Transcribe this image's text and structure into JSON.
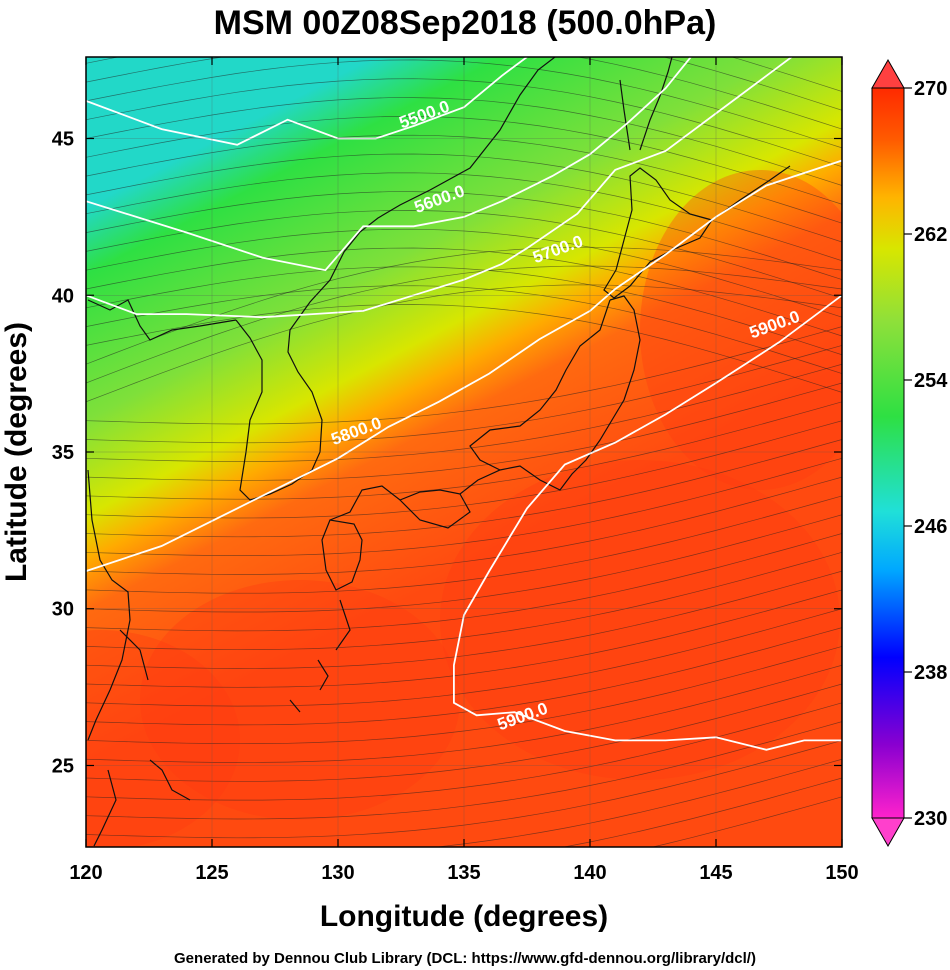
{
  "footer": "Generated by Dennou Club Library (DCL: https://www.gfd-dennou.org/library/dcl/)",
  "chart_data": {
    "type": "heatmap",
    "title": "MSM 00Z08Sep2018 (500.0hPa)",
    "xlabel": "Longitude (degrees)",
    "ylabel": "Latitude  (degrees)",
    "xlim": [
      120,
      150
    ],
    "ylim": [
      22.4,
      47.6
    ],
    "xticks": [
      120,
      125,
      130,
      135,
      140,
      145,
      150
    ],
    "yticks": [
      25,
      30,
      35,
      40,
      45
    ],
    "grid": true,
    "colorbar": {
      "position": "right",
      "range": [
        230,
        270
      ],
      "ticks": [
        230,
        238,
        246,
        254,
        262,
        270
      ],
      "colors": [
        "#ff22cc",
        "#8a00d0",
        "#0000ff",
        "#00a8ff",
        "#20e0d8",
        "#2ee043",
        "#8ee03a",
        "#d8e600",
        "#ffb400",
        "#ff5a00",
        "#ff2a00"
      ]
    },
    "fill_field": {
      "description_values": "temperature-like field, cold (≈248) near 130E 48N, warm (≈268) south-east",
      "warm_value": 268,
      "cold_value": 248
    },
    "contours": [
      {
        "label": "5500.0",
        "points": [
          [
            120,
            46.2
          ],
          [
            123,
            45.3
          ],
          [
            126,
            44.8
          ],
          [
            128,
            45.6
          ],
          [
            130,
            45.0
          ],
          [
            131.5,
            45.0
          ],
          [
            133,
            45.4
          ],
          [
            135,
            46.0
          ],
          [
            136.5,
            47.0
          ],
          [
            137.5,
            47.6
          ]
        ]
      },
      {
        "label": "5600.0",
        "points": [
          [
            120,
            43.0
          ],
          [
            124,
            42.0
          ],
          [
            127,
            41.2
          ],
          [
            129.5,
            40.8
          ],
          [
            131,
            42.2
          ],
          [
            133,
            42.2
          ],
          [
            135,
            42.5
          ],
          [
            136.5,
            43.0
          ],
          [
            138.5,
            43.8
          ],
          [
            140,
            44.5
          ],
          [
            141.5,
            45.5
          ],
          [
            143,
            46.6
          ],
          [
            144,
            47.6
          ]
        ]
      },
      {
        "label": "5700.0",
        "points": [
          [
            120,
            40.0
          ],
          [
            122,
            39.4
          ],
          [
            124,
            39.4
          ],
          [
            127,
            39.3
          ],
          [
            129,
            39.4
          ],
          [
            131,
            39.5
          ],
          [
            133,
            40.0
          ],
          [
            135,
            40.5
          ],
          [
            136.5,
            41.0
          ],
          [
            137.5,
            41.5
          ],
          [
            139.5,
            42.6
          ],
          [
            141,
            44.0
          ],
          [
            143,
            44.6
          ],
          [
            145,
            45.8
          ],
          [
            147,
            47.0
          ],
          [
            148,
            47.6
          ]
        ]
      },
      {
        "label": "5800.0",
        "points": [
          [
            120,
            31.2
          ],
          [
            123,
            32.0
          ],
          [
            126,
            33.2
          ],
          [
            128,
            34.0
          ],
          [
            130,
            34.8
          ],
          [
            132,
            35.8
          ],
          [
            134,
            36.6
          ],
          [
            136,
            37.5
          ],
          [
            138,
            38.6
          ],
          [
            140,
            39.5
          ],
          [
            141,
            40.2
          ],
          [
            143,
            41.3
          ],
          [
            145,
            42.5
          ],
          [
            147,
            43.5
          ],
          [
            150,
            44.3
          ]
        ]
      },
      {
        "label": "5900.0",
        "points": [
          [
            150,
            40.0
          ],
          [
            147.5,
            38.5
          ],
          [
            145,
            37.2
          ],
          [
            143,
            36.2
          ],
          [
            141,
            35.3
          ],
          [
            139,
            34.6
          ],
          [
            137.5,
            33.2
          ],
          [
            136,
            31.2
          ],
          [
            135,
            29.8
          ],
          [
            134.6,
            28.2
          ],
          [
            134.6,
            27.0
          ],
          [
            135.5,
            26.6
          ],
          [
            137,
            26.7
          ],
          [
            139,
            26.1
          ],
          [
            141,
            25.8
          ],
          [
            143,
            25.8
          ],
          [
            145,
            25.9
          ],
          [
            147,
            25.5
          ],
          [
            148.5,
            25.8
          ],
          [
            150,
            25.8
          ]
        ]
      }
    ],
    "contour_label_positions": [
      {
        "label": "5500.0",
        "lon": 133.5,
        "lat": 45.6
      },
      {
        "label": "5600.0",
        "lon": 134.1,
        "lat": 42.9
      },
      {
        "label": "5700.0",
        "lon": 138.8,
        "lat": 41.3
      },
      {
        "label": "5800.0",
        "lon": 130.8,
        "lat": 35.5
      },
      {
        "label": "5900.0",
        "lon": 147.4,
        "lat": 38.9
      },
      {
        "label": "5900.0",
        "lon": 137.4,
        "lat": 26.4
      }
    ]
  }
}
